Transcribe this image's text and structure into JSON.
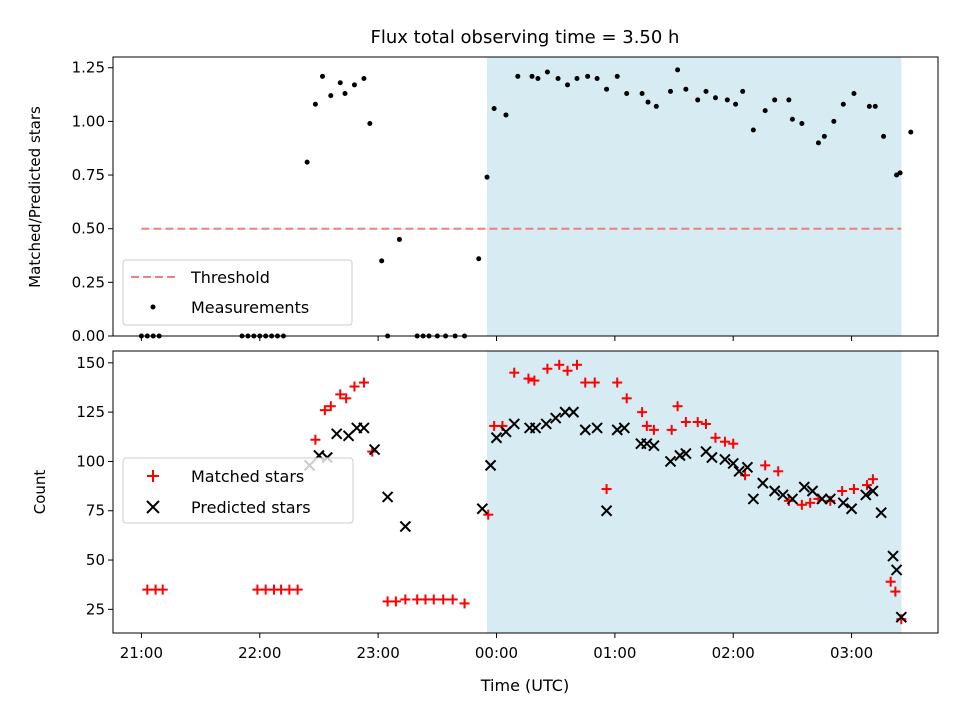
{
  "figure": {
    "title": "Flux total observing time = 3.50 h",
    "xlabel": "Time (UTC)",
    "xtick_labels": [
      "21:00",
      "22:00",
      "23:00",
      "00:00",
      "01:00",
      "02:00",
      "03:00"
    ],
    "colors": {
      "threshold": "#f08080",
      "measurement": "#000000",
      "matched": "#ff0000",
      "predicted": "#000000",
      "span": "#add8e6"
    }
  },
  "chart_data": [
    {
      "type": "scatter",
      "ylabel": "Matched/Predicted stars",
      "x_unit": "hours since 21:00 UTC",
      "xlim": [
        -0.24,
        6.73
      ],
      "ylim": [
        0,
        1.3
      ],
      "yticks": [
        0.0,
        0.25,
        0.5,
        0.75,
        1.0,
        1.25
      ],
      "ytick_labels": [
        "0.00",
        "0.25",
        "0.50",
        "0.75",
        "1.00",
        "1.25"
      ],
      "grid": false,
      "legend": {
        "position": "lower-left",
        "entries": [
          "Threshold",
          "Measurements"
        ]
      },
      "shaded_span": {
        "x": [
          2.92,
          6.42
        ]
      },
      "threshold": {
        "name": "Threshold",
        "y": 0.5,
        "x": [
          0.0,
          6.42
        ],
        "style": "dashed"
      },
      "series": [
        {
          "name": "Measurements",
          "marker": "dot",
          "points": [
            [
              0.0,
              0
            ],
            [
              0.05,
              0
            ],
            [
              0.1,
              0
            ],
            [
              0.15,
              0
            ],
            [
              0.85,
              0
            ],
            [
              0.9,
              0
            ],
            [
              0.95,
              0
            ],
            [
              1.0,
              0
            ],
            [
              1.05,
              0
            ],
            [
              1.1,
              0
            ],
            [
              1.15,
              0
            ],
            [
              1.2,
              0
            ],
            [
              1.4,
              0.81
            ],
            [
              1.47,
              1.08
            ],
            [
              1.53,
              1.21
            ],
            [
              1.6,
              1.12
            ],
            [
              1.68,
              1.18
            ],
            [
              1.72,
              1.13
            ],
            [
              1.8,
              1.17
            ],
            [
              1.88,
              1.2
            ],
            [
              1.93,
              0.99
            ],
            [
              2.03,
              0.35
            ],
            [
              2.08,
              0
            ],
            [
              2.18,
              0.45
            ],
            [
              2.33,
              0
            ],
            [
              2.38,
              0
            ],
            [
              2.43,
              0
            ],
            [
              2.5,
              0
            ],
            [
              2.57,
              0
            ],
            [
              2.65,
              0
            ],
            [
              2.73,
              0
            ],
            [
              2.85,
              0.36
            ],
            [
              2.92,
              0.74
            ],
            [
              2.98,
              1.06
            ],
            [
              3.08,
              1.03
            ],
            [
              3.18,
              1.21
            ],
            [
              3.3,
              1.21
            ],
            [
              3.35,
              1.2
            ],
            [
              3.43,
              1.23
            ],
            [
              3.52,
              1.2
            ],
            [
              3.6,
              1.17
            ],
            [
              3.68,
              1.2
            ],
            [
              3.77,
              1.21
            ],
            [
              3.85,
              1.2
            ],
            [
              3.93,
              1.15
            ],
            [
              4.02,
              1.21
            ],
            [
              4.1,
              1.13
            ],
            [
              4.23,
              1.13
            ],
            [
              4.28,
              1.09
            ],
            [
              4.35,
              1.07
            ],
            [
              4.47,
              1.14
            ],
            [
              4.53,
              1.24
            ],
            [
              4.6,
              1.15
            ],
            [
              4.7,
              1.1
            ],
            [
              4.77,
              1.14
            ],
            [
              4.85,
              1.11
            ],
            [
              4.95,
              1.1
            ],
            [
              5.02,
              1.08
            ],
            [
              5.08,
              1.14
            ],
            [
              5.17,
              0.96
            ],
            [
              5.27,
              1.05
            ],
            [
              5.35,
              1.1
            ],
            [
              5.47,
              1.1
            ],
            [
              5.5,
              1.01
            ],
            [
              5.58,
              0.99
            ],
            [
              5.72,
              0.9
            ],
            [
              5.77,
              0.93
            ],
            [
              5.85,
              1.0
            ],
            [
              5.93,
              1.08
            ],
            [
              6.02,
              1.13
            ],
            [
              6.15,
              1.07
            ],
            [
              6.2,
              1.07
            ],
            [
              6.27,
              0.93
            ],
            [
              6.38,
              0.75
            ],
            [
              6.41,
              0.76
            ],
            [
              6.5,
              0.95
            ]
          ]
        }
      ]
    },
    {
      "type": "scatter",
      "ylabel": "Count",
      "x_unit": "hours since 21:00 UTC",
      "xlim": [
        -0.24,
        6.73
      ],
      "ylim": [
        13,
        156
      ],
      "yticks": [
        25,
        50,
        75,
        100,
        125,
        150
      ],
      "ytick_labels": [
        "25",
        "50",
        "75",
        "100",
        "125",
        "150"
      ],
      "grid": false,
      "legend": {
        "position": "center-left",
        "entries": [
          "Matched stars",
          "Predicted stars"
        ]
      },
      "shaded_span": {
        "x": [
          2.92,
          6.42
        ]
      },
      "series": [
        {
          "name": "Matched stars",
          "marker": "plus",
          "points": [
            [
              0.05,
              35
            ],
            [
              0.12,
              35
            ],
            [
              0.18,
              35
            ],
            [
              0.98,
              35
            ],
            [
              1.05,
              35
            ],
            [
              1.12,
              35
            ],
            [
              1.18,
              35
            ],
            [
              1.25,
              35
            ],
            [
              1.32,
              35
            ],
            [
              1.47,
              111
            ],
            [
              1.55,
              126
            ],
            [
              1.6,
              128
            ],
            [
              1.68,
              134
            ],
            [
              1.73,
              132
            ],
            [
              1.8,
              138
            ],
            [
              1.88,
              140
            ],
            [
              1.95,
              105
            ],
            [
              2.08,
              29
            ],
            [
              2.15,
              29
            ],
            [
              2.23,
              30
            ],
            [
              2.33,
              30
            ],
            [
              2.4,
              30
            ],
            [
              2.47,
              30
            ],
            [
              2.55,
              30
            ],
            [
              2.63,
              30
            ],
            [
              2.73,
              28
            ],
            [
              2.93,
              73
            ],
            [
              2.98,
              118
            ],
            [
              3.05,
              118
            ],
            [
              3.15,
              145
            ],
            [
              3.27,
              142
            ],
            [
              3.32,
              141
            ],
            [
              3.43,
              147
            ],
            [
              3.53,
              149
            ],
            [
              3.6,
              146
            ],
            [
              3.68,
              149
            ],
            [
              3.75,
              140
            ],
            [
              3.83,
              140
            ],
            [
              3.93,
              86
            ],
            [
              4.02,
              140
            ],
            [
              4.1,
              132
            ],
            [
              4.23,
              125
            ],
            [
              4.27,
              118
            ],
            [
              4.33,
              116
            ],
            [
              4.48,
              116
            ],
            [
              4.53,
              128
            ],
            [
              4.6,
              120
            ],
            [
              4.7,
              120
            ],
            [
              4.77,
              119
            ],
            [
              4.85,
              112
            ],
            [
              4.93,
              110
            ],
            [
              5.0,
              109
            ],
            [
              5.1,
              93
            ],
            [
              5.27,
              98
            ],
            [
              5.38,
              95
            ],
            [
              5.47,
              80
            ],
            [
              5.58,
              78
            ],
            [
              5.65,
              79
            ],
            [
              5.72,
              81
            ],
            [
              5.82,
              80
            ],
            [
              5.92,
              85
            ],
            [
              6.02,
              86
            ],
            [
              6.13,
              88
            ],
            [
              6.18,
              91
            ],
            [
              6.33,
              39
            ],
            [
              6.37,
              34
            ],
            [
              6.42,
              20
            ]
          ]
        },
        {
          "name": "Predicted stars",
          "marker": "x",
          "points": [
            [
              1.42,
              98
            ],
            [
              1.5,
              103
            ],
            [
              1.57,
              102
            ],
            [
              1.65,
              114
            ],
            [
              1.75,
              113
            ],
            [
              1.82,
              117
            ],
            [
              1.88,
              117
            ],
            [
              1.97,
              106
            ],
            [
              2.08,
              82
            ],
            [
              2.23,
              67
            ],
            [
              2.88,
              76
            ],
            [
              2.95,
              98
            ],
            [
              3.0,
              112
            ],
            [
              3.08,
              115
            ],
            [
              3.15,
              119
            ],
            [
              3.28,
              117
            ],
            [
              3.33,
              117
            ],
            [
              3.42,
              119
            ],
            [
              3.5,
              122
            ],
            [
              3.58,
              125
            ],
            [
              3.65,
              125
            ],
            [
              3.75,
              116
            ],
            [
              3.85,
              117
            ],
            [
              3.93,
              75
            ],
            [
              4.02,
              116
            ],
            [
              4.08,
              117
            ],
            [
              4.22,
              109
            ],
            [
              4.27,
              109
            ],
            [
              4.33,
              108
            ],
            [
              4.47,
              100
            ],
            [
              4.55,
              103
            ],
            [
              4.6,
              104
            ],
            [
              4.77,
              105
            ],
            [
              4.82,
              102
            ],
            [
              4.93,
              101
            ],
            [
              5.0,
              99
            ],
            [
              5.05,
              95
            ],
            [
              5.12,
              97
            ],
            [
              5.17,
              81
            ],
            [
              5.25,
              89
            ],
            [
              5.35,
              85
            ],
            [
              5.42,
              83
            ],
            [
              5.5,
              81
            ],
            [
              5.6,
              87
            ],
            [
              5.67,
              85
            ],
            [
              5.75,
              81
            ],
            [
              5.82,
              81
            ],
            [
              5.93,
              79
            ],
            [
              6.0,
              76
            ],
            [
              6.12,
              83
            ],
            [
              6.18,
              85
            ],
            [
              6.25,
              74
            ],
            [
              6.35,
              52
            ],
            [
              6.38,
              45
            ],
            [
              6.42,
              21
            ]
          ]
        }
      ]
    }
  ]
}
